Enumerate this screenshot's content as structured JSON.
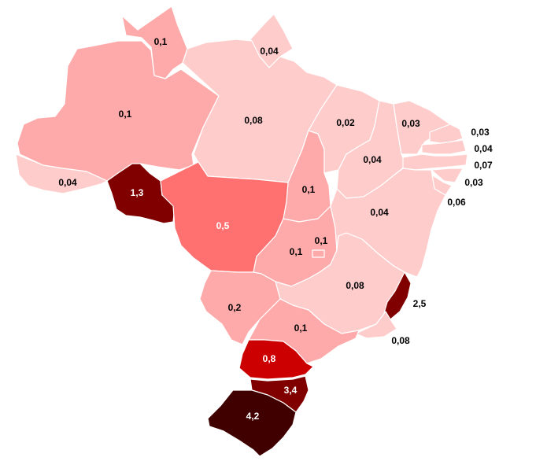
{
  "colors": {
    "lightest": "#FFCCCC",
    "light": "#FFAAAA",
    "mid": "#FF7070",
    "red": "#CC0000",
    "dark": "#800000",
    "darkest": "#400000",
    "text_dark": "#000000",
    "text_light": "#ffffff"
  },
  "regions": {
    "roraima": "0,1",
    "amapa": "0,04",
    "amazonas": "0,1",
    "para": "0,08",
    "acre": "0,04",
    "rondonia": "1,3",
    "mato_grosso": "0,5",
    "tocantins": "0,1",
    "maranhao": "0,02",
    "piaui": "0,04",
    "ceara": "0,03",
    "rio_grande_do_norte": "0,03",
    "paraiba": "0,04",
    "pernambuco": "0,07",
    "alagoas": "0,03",
    "sergipe": "0,06",
    "bahia": "0,04",
    "distrito_federal": "0,1",
    "goias": "0,1",
    "minas_gerais": "0,08",
    "espirito_santo": "2,5",
    "mato_grosso_do_sul": "0,2",
    "sao_paulo": "0,1",
    "rio_de_janeiro": "0,08",
    "parana": "0,8",
    "santa_catarina": "3,4",
    "rio_grande_do_sul": "4,2"
  }
}
